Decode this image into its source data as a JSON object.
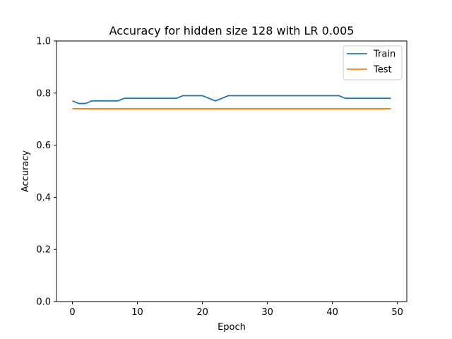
{
  "chart_data": {
    "type": "line",
    "title": "Accuracy for hidden size 128 with LR 0.005",
    "xlabel": "Epoch",
    "ylabel": "Accuracy",
    "xlim": [
      -2.45,
      51.45
    ],
    "ylim": [
      0.0,
      1.0
    ],
    "xticks": [
      0,
      10,
      20,
      30,
      40,
      50
    ],
    "yticks": [
      0.0,
      0.2,
      0.4,
      0.6,
      0.8,
      1.0
    ],
    "xtick_labels": [
      "0",
      "10",
      "20",
      "30",
      "40",
      "50"
    ],
    "ytick_labels": [
      "0.0",
      "0.2",
      "0.4",
      "0.6",
      "0.8",
      "1.0"
    ],
    "grid": false,
    "legend_position": "top-right",
    "x": [
      0,
      1,
      2,
      3,
      4,
      5,
      6,
      7,
      8,
      9,
      10,
      11,
      12,
      13,
      14,
      15,
      16,
      17,
      18,
      19,
      20,
      21,
      22,
      23,
      24,
      25,
      26,
      27,
      28,
      29,
      30,
      31,
      32,
      33,
      34,
      35,
      36,
      37,
      38,
      39,
      40,
      41,
      42,
      43,
      44,
      45,
      46,
      47,
      48,
      49
    ],
    "series": [
      {
        "name": "Train",
        "color": "#1f77b4",
        "values": [
          0.77,
          0.76,
          0.76,
          0.77,
          0.77,
          0.77,
          0.77,
          0.77,
          0.78,
          0.78,
          0.78,
          0.78,
          0.78,
          0.78,
          0.78,
          0.78,
          0.78,
          0.79,
          0.79,
          0.79,
          0.79,
          0.78,
          0.77,
          0.78,
          0.79,
          0.79,
          0.79,
          0.79,
          0.79,
          0.79,
          0.79,
          0.79,
          0.79,
          0.79,
          0.79,
          0.79,
          0.79,
          0.79,
          0.79,
          0.79,
          0.79,
          0.79,
          0.78,
          0.78,
          0.78,
          0.78,
          0.78,
          0.78,
          0.78,
          0.78
        ]
      },
      {
        "name": "Test",
        "color": "#ff7f0e",
        "values": [
          0.74,
          0.74,
          0.74,
          0.74,
          0.74,
          0.74,
          0.74,
          0.74,
          0.74,
          0.74,
          0.74,
          0.74,
          0.74,
          0.74,
          0.74,
          0.74,
          0.74,
          0.74,
          0.74,
          0.74,
          0.74,
          0.74,
          0.74,
          0.74,
          0.74,
          0.74,
          0.74,
          0.74,
          0.74,
          0.74,
          0.74,
          0.74,
          0.74,
          0.74,
          0.74,
          0.74,
          0.74,
          0.74,
          0.74,
          0.74,
          0.74,
          0.74,
          0.74,
          0.74,
          0.74,
          0.74,
          0.74,
          0.74,
          0.74,
          0.74
        ]
      }
    ]
  }
}
